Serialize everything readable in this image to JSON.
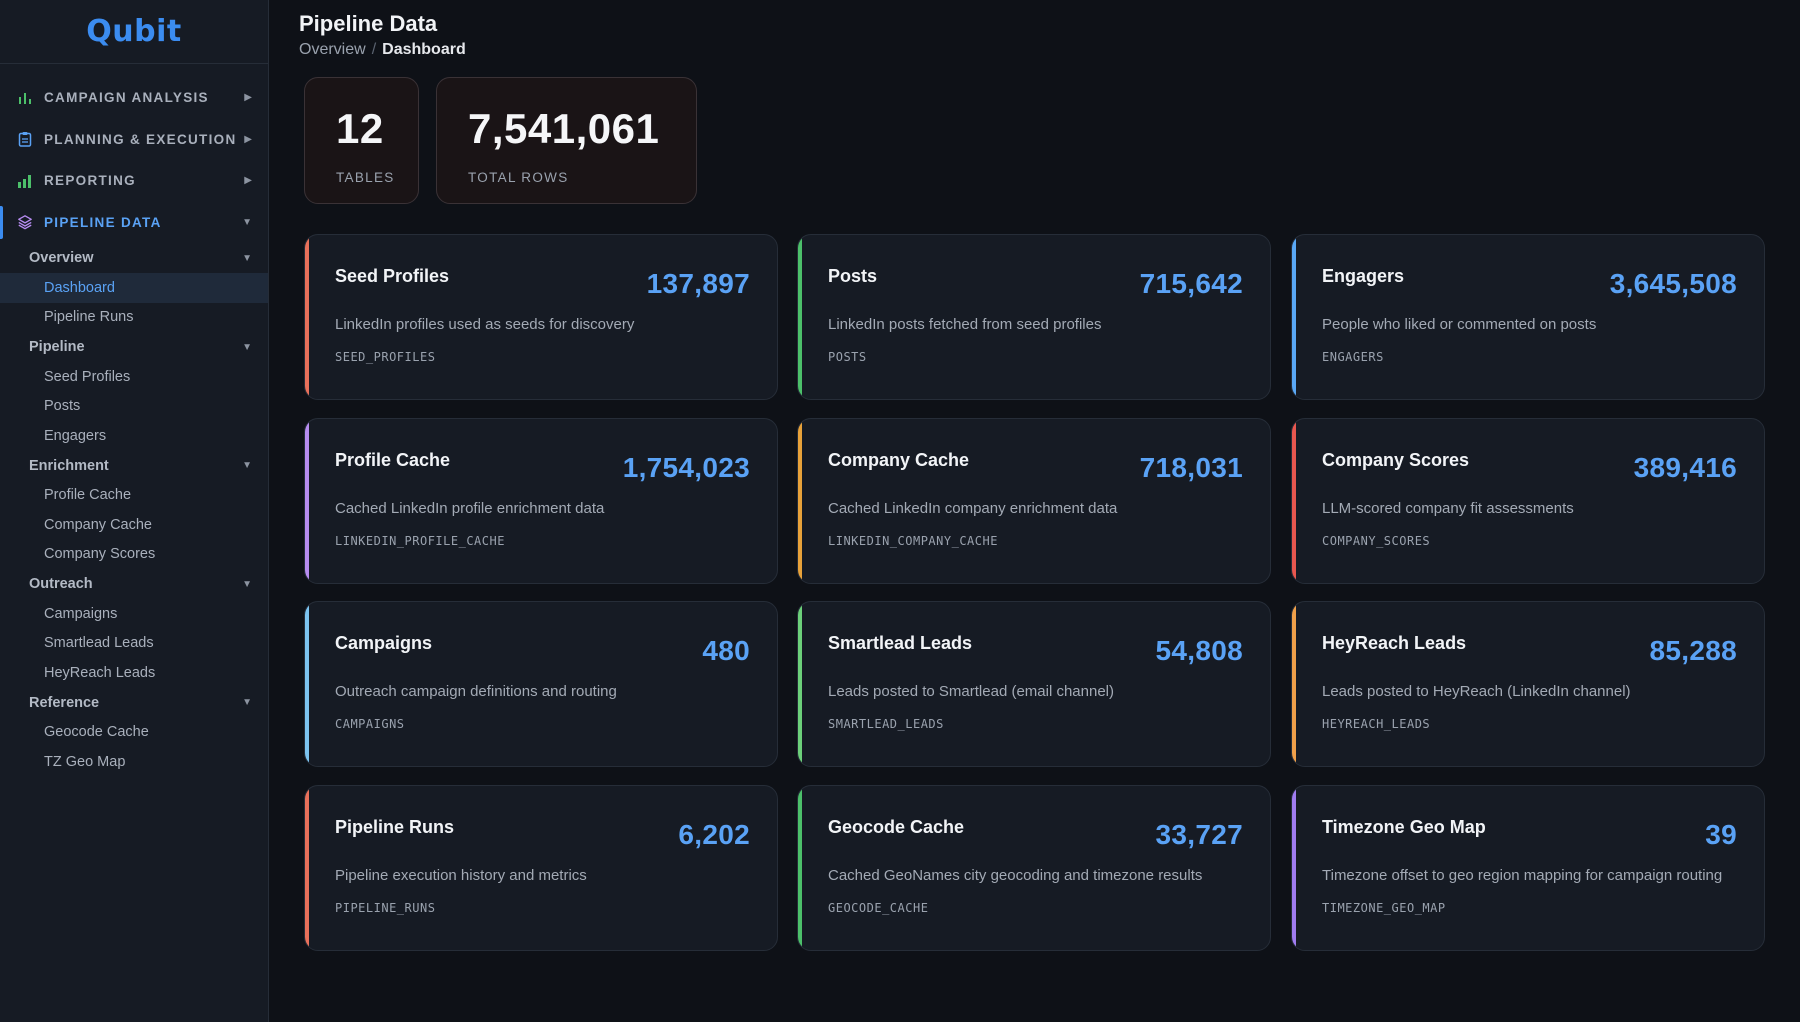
{
  "app": {
    "logo_prefix": "Q",
    "logo_rest": "ubit"
  },
  "sidebar": {
    "sections": [
      {
        "label": "CAMPAIGN ANALYSIS",
        "icon": "bar-chart-icon",
        "active": false
      },
      {
        "label": "PLANNING & EXECUTION",
        "icon": "clipboard-icon",
        "active": false
      },
      {
        "label": "REPORTING",
        "icon": "bar-chart-filled-icon",
        "active": false
      },
      {
        "label": "PIPELINE DATA",
        "icon": "layers-icon",
        "active": true
      }
    ],
    "groups": {
      "overview": {
        "label": "Overview",
        "items": [
          "Dashboard",
          "Pipeline Runs"
        ]
      },
      "pipeline": {
        "label": "Pipeline",
        "items": [
          "Seed Profiles",
          "Posts",
          "Engagers"
        ]
      },
      "enrichment": {
        "label": "Enrichment",
        "items": [
          "Profile Cache",
          "Company Cache",
          "Company Scores"
        ]
      },
      "outreach": {
        "label": "Outreach",
        "items": [
          "Campaigns",
          "Smartlead Leads",
          "HeyReach Leads"
        ]
      },
      "reference": {
        "label": "Reference",
        "items": [
          "Geocode Cache",
          "TZ Geo Map"
        ]
      }
    }
  },
  "header": {
    "title": "Pipeline Data",
    "breadcrumb": {
      "parent": "Overview",
      "separator": "/",
      "current": "Dashboard"
    }
  },
  "stats": {
    "tables": {
      "value": "12",
      "label": "TABLES"
    },
    "rows": {
      "value": "7,541,061",
      "label": "TOTAL ROWS"
    }
  },
  "cards": [
    {
      "name": "Seed Profiles",
      "count": "137,897",
      "desc": "LinkedIn profiles used as seeds for discovery",
      "code": "SEED_PROFILES",
      "accent": "#e8705a"
    },
    {
      "name": "Posts",
      "count": "715,642",
      "desc": "LinkedIn posts fetched from seed profiles",
      "code": "POSTS",
      "accent": "#4cc06a"
    },
    {
      "name": "Engagers",
      "count": "3,645,508",
      "desc": "People who liked or commented on posts",
      "code": "ENGAGERS",
      "accent": "#5aa8f5"
    },
    {
      "name": "Profile Cache",
      "count": "1,754,023",
      "desc": "Cached LinkedIn profile enrichment data",
      "code": "LINKEDIN_PROFILE_CACHE",
      "accent": "#b68cf0"
    },
    {
      "name": "Company Cache",
      "count": "718,031",
      "desc": "Cached LinkedIn company enrichment data",
      "code": "LINKEDIN_COMPANY_CACHE",
      "accent": "#e8a23a"
    },
    {
      "name": "Company Scores",
      "count": "389,416",
      "desc": "LLM-scored company fit assessments",
      "code": "COMPANY_SCORES",
      "accent": "#e8574f"
    },
    {
      "name": "Campaigns",
      "count": "480",
      "desc": "Outreach campaign definitions and routing",
      "code": "CAMPAIGNS",
      "accent": "#7cc4f0"
    },
    {
      "name": "Smartlead Leads",
      "count": "54,808",
      "desc": "Leads posted to Smartlead (email channel)",
      "code": "SMARTLEAD_LEADS",
      "accent": "#6cd07a"
    },
    {
      "name": "HeyReach Leads",
      "count": "85,288",
      "desc": "Leads posted to HeyReach (LinkedIn channel)",
      "code": "HEYREACH_LEADS",
      "accent": "#f0a04a"
    },
    {
      "name": "Pipeline Runs",
      "count": "6,202",
      "desc": "Pipeline execution history and metrics",
      "code": "PIPELINE_RUNS",
      "accent": "#e8705a"
    },
    {
      "name": "Geocode Cache",
      "count": "33,727",
      "desc": "Cached GeoNames city geocoding and timezone results",
      "code": "GEOCODE_CACHE",
      "accent": "#4cc06a"
    },
    {
      "name": "Timezone Geo Map",
      "count": "39",
      "desc": "Timezone offset to geo region mapping for campaign routing",
      "code": "TIMEZONE_GEO_MAP",
      "accent": "#a07cf0"
    }
  ]
}
